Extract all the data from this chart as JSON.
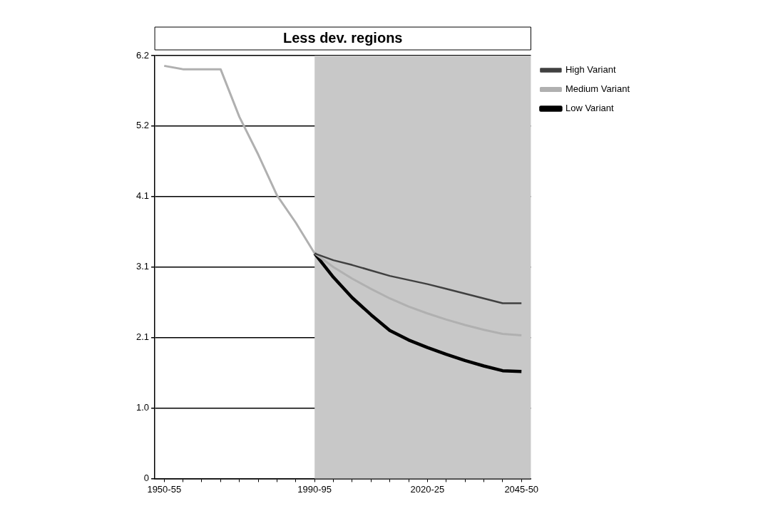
{
  "chart_data": {
    "type": "line",
    "title": "Less dev. regions",
    "categories": [
      "1950-55",
      null,
      null,
      null,
      null,
      null,
      null,
      null,
      "1990-95",
      null,
      null,
      null,
      null,
      null,
      "2020-25",
      null,
      null,
      null,
      null,
      "2045-50"
    ],
    "series": [
      {
        "name": "High Variant",
        "color": "#404040",
        "values": [
          null,
          null,
          null,
          null,
          null,
          null,
          null,
          null,
          3.3,
          3.2,
          3.13,
          3.05,
          2.97,
          2.91,
          2.85,
          2.78,
          2.71,
          2.64,
          2.57,
          2.57
        ]
      },
      {
        "name": "Medium Variant",
        "color": "#b0b0b0",
        "values": [
          6.05,
          6.0,
          6.0,
          6.0,
          5.3,
          4.75,
          4.15,
          3.75,
          3.3,
          3.1,
          2.93,
          2.78,
          2.64,
          2.52,
          2.42,
          2.33,
          2.25,
          2.18,
          2.12,
          2.1
        ]
      },
      {
        "name": "Low Variant",
        "color": "#000000",
        "values": [
          null,
          null,
          null,
          null,
          null,
          null,
          null,
          null,
          3.3,
          2.95,
          2.65,
          2.4,
          2.17,
          2.03,
          1.92,
          1.82,
          1.73,
          1.65,
          1.58,
          1.57
        ]
      }
    ],
    "ylim": [
      0,
      6.2
    ],
    "yticks": [
      0,
      {
        "value": 1.0333,
        "label": "1.0"
      },
      {
        "value": 2.0667,
        "label": "2.1"
      },
      3.1,
      {
        "value": 4.1333,
        "label": "4.1"
      },
      {
        "value": 5.1667,
        "label": "5.2"
      },
      6.2
    ],
    "bands": [
      {
        "axis": "x",
        "from": "1990-95",
        "to": "2045-50",
        "color": "#c8c8c8"
      }
    ],
    "grid": "y",
    "legend": "top right",
    "marker": "none",
    "line_style": "solid"
  }
}
